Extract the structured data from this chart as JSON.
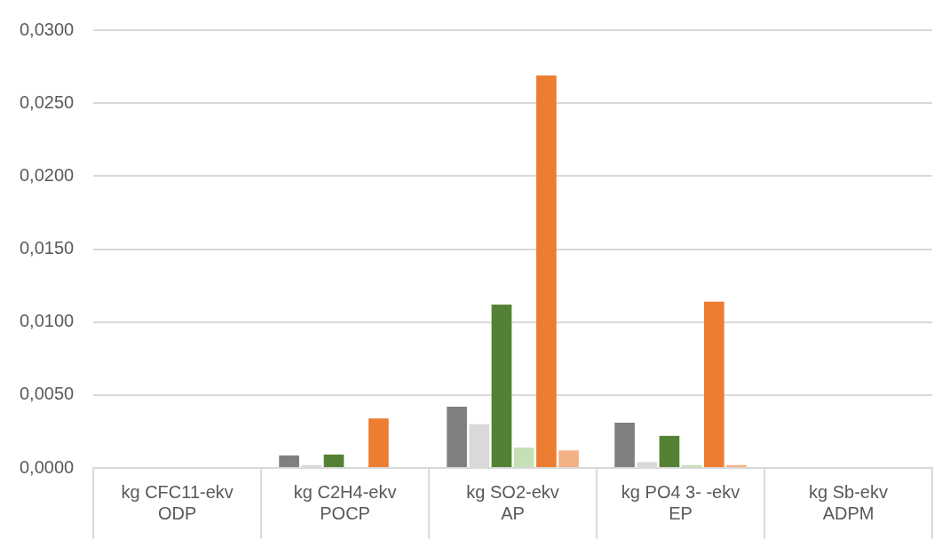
{
  "chart_data": {
    "type": "bar",
    "categories": [
      "kg CFC11-ekv\nODP",
      "kg C2H4-ekv\nPOCP",
      "kg SO2-ekv\nAP",
      "kg PO4 3- -ekv\nEP",
      "kg Sb-ekv\nADPM"
    ],
    "series": [
      {
        "color": "#808080",
        "values": [
          0,
          0.00086,
          0.0042,
          0.0031,
          0
        ]
      },
      {
        "color": "#d9d9d9",
        "values": [
          0,
          0.0002,
          0.003,
          0.0004,
          0
        ]
      },
      {
        "color": "#548235",
        "values": [
          0,
          0.00092,
          0.0112,
          0.0022,
          0
        ]
      },
      {
        "color": "#c5e0b4",
        "values": [
          0,
          0,
          0.0014,
          0.0002,
          0
        ]
      },
      {
        "color": "#ed7d31",
        "values": [
          0,
          0.0034,
          0.0269,
          0.0114,
          0
        ]
      },
      {
        "color": "#f4b183",
        "values": [
          0,
          0,
          0.0012,
          0.0002,
          0
        ]
      }
    ],
    "ylim": [
      0,
      0.03
    ],
    "yticks": [
      {
        "value": 0,
        "label": "0,0000"
      },
      {
        "value": 0.005,
        "label": "0,0050"
      },
      {
        "value": 0.01,
        "label": "0,0100"
      },
      {
        "value": 0.015,
        "label": "0,0150"
      },
      {
        "value": 0.02,
        "label": "0,0200"
      },
      {
        "value": 0.025,
        "label": "0,0250"
      },
      {
        "value": 0.03,
        "label": "0,0300"
      }
    ],
    "grid": "y",
    "legend": false
  }
}
